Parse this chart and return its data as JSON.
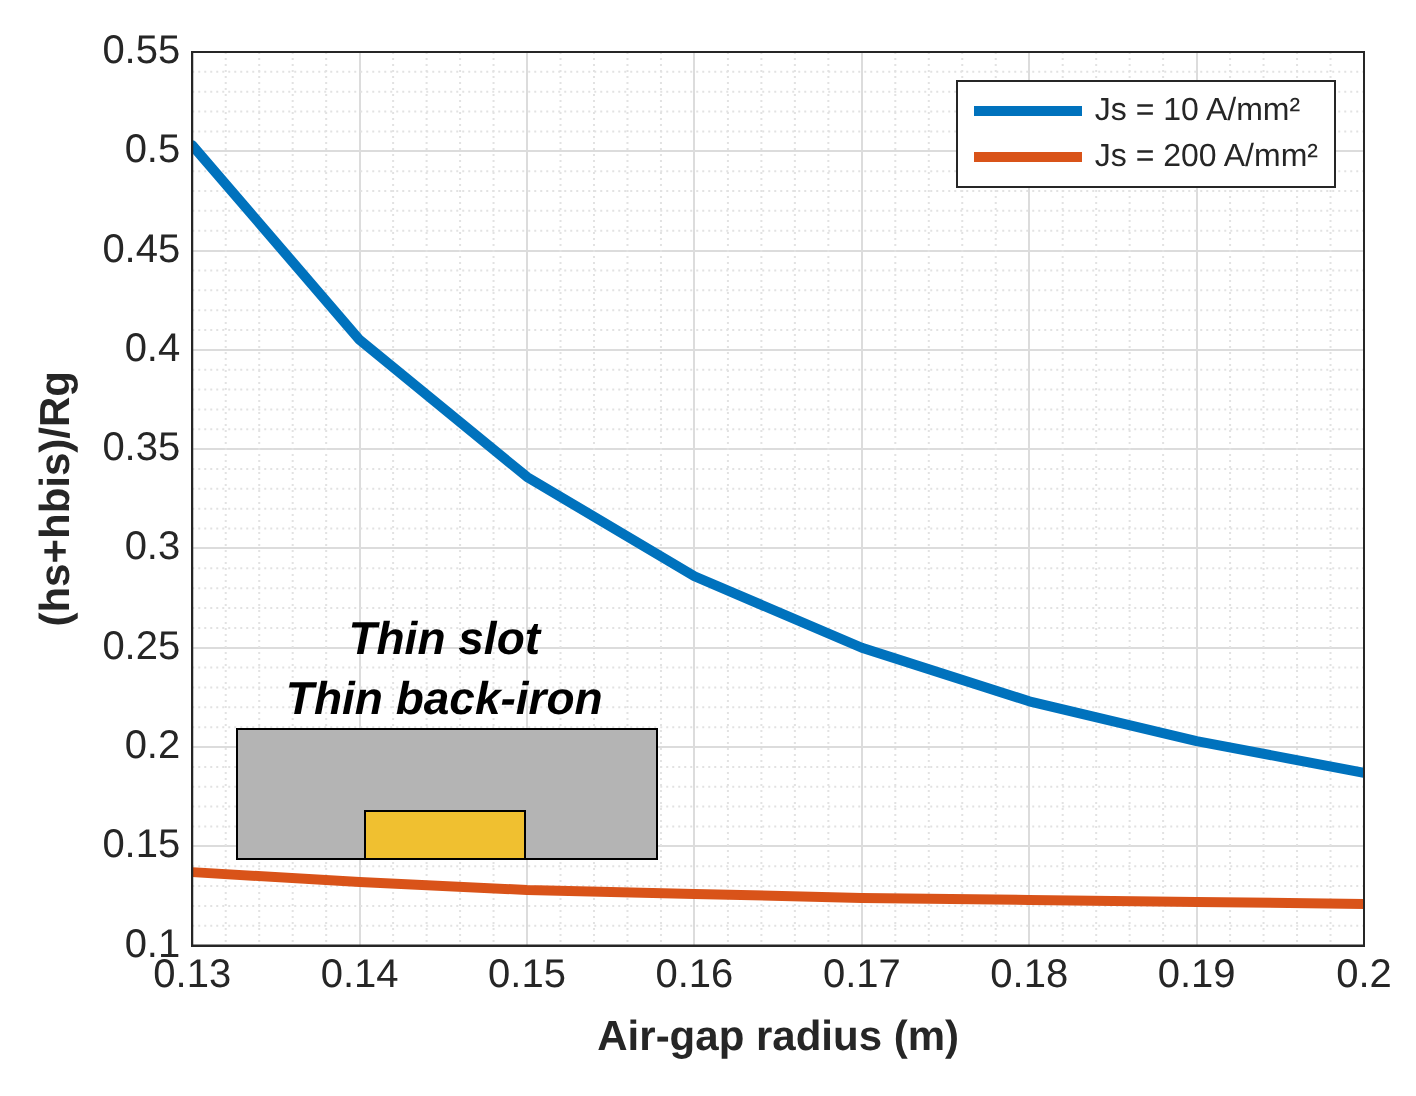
{
  "chart_data": {
    "type": "line",
    "xlabel": "Air-gap radius (m)",
    "ylabel": "(hs+hbis)/Rg",
    "x": [
      0.13,
      0.14,
      0.15,
      0.16,
      0.17,
      0.18,
      0.19,
      0.2
    ],
    "series": [
      {
        "name": "Js = 10 A/mm²",
        "color": "#0072bd",
        "values": [
          0.503,
          0.405,
          0.336,
          0.286,
          0.25,
          0.223,
          0.203,
          0.187
        ]
      },
      {
        "name": "Js = 200 A/mm²",
        "color": "#d95319",
        "values": [
          0.137,
          0.132,
          0.128,
          0.126,
          0.124,
          0.123,
          0.122,
          0.121
        ]
      }
    ],
    "xlim": [
      0.13,
      0.2
    ],
    "xticks": [
      0.13,
      0.14,
      0.15,
      0.16,
      0.17,
      0.18,
      0.19,
      0.2
    ],
    "ylim": [
      0.1,
      0.55
    ],
    "yticks": [
      0.1,
      0.15,
      0.2,
      0.25,
      0.3,
      0.35,
      0.4,
      0.45,
      0.5,
      0.55
    ],
    "grid": true,
    "legend": "top right",
    "marker": "none",
    "line_style": "solid",
    "annotations": [
      "Thin slot",
      "Thin back-iron"
    ]
  }
}
